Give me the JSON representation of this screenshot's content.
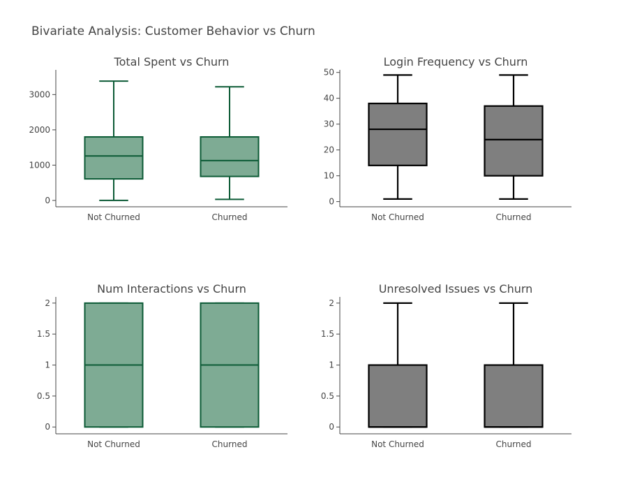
{
  "figure": {
    "title": "Bivariate Analysis: Customer Behavior vs Churn"
  },
  "colors": {
    "green_fill": "#7eab94",
    "green_line": "#0b5a35",
    "gray_fill": "#7f7f7f",
    "gray_line": "#000000"
  },
  "chart_data": [
    {
      "type": "box",
      "title": "Total Spent vs Churn",
      "xlabel": "",
      "ylabel": "",
      "categories": [
        "Not Churned",
        "Churned"
      ],
      "ylim": [
        -180,
        3700
      ],
      "yticks": [
        0,
        1000,
        2000,
        3000
      ],
      "ytick_labels": [
        "0",
        "1000",
        "2000",
        "3000"
      ],
      "fill_color": "#7eab94",
      "line_color": "#0b5a35",
      "boxes": [
        {
          "category": "Not Churned",
          "min": 0,
          "q1": 610,
          "median": 1260,
          "q3": 1800,
          "max": 3380
        },
        {
          "category": "Churned",
          "min": 30,
          "q1": 680,
          "median": 1130,
          "q3": 1800,
          "max": 3220
        }
      ]
    },
    {
      "type": "box",
      "title": "Login Frequency vs Churn",
      "xlabel": "",
      "ylabel": "",
      "categories": [
        "Not Churned",
        "Churned"
      ],
      "ylim": [
        -2,
        51
      ],
      "yticks": [
        0,
        10,
        20,
        30,
        40,
        50
      ],
      "ytick_labels": [
        "0",
        "10",
        "20",
        "30",
        "40",
        "50"
      ],
      "fill_color": "#7f7f7f",
      "line_color": "#000000",
      "boxes": [
        {
          "category": "Not Churned",
          "min": 1,
          "q1": 14,
          "median": 28,
          "q3": 38,
          "max": 49
        },
        {
          "category": "Churned",
          "min": 1,
          "q1": 10,
          "median": 24,
          "q3": 37,
          "max": 49
        }
      ]
    },
    {
      "type": "box",
      "title": "Num Interactions vs Churn",
      "xlabel": "",
      "ylabel": "",
      "categories": [
        "Not Churned",
        "Churned"
      ],
      "ylim": [
        -0.11,
        2.1
      ],
      "yticks": [
        0,
        0.5,
        1,
        1.5,
        2
      ],
      "ytick_labels": [
        "0",
        "0.5",
        "1",
        "1.5",
        "2"
      ],
      "fill_color": "#7eab94",
      "line_color": "#0b5a35",
      "boxes": [
        {
          "category": "Not Churned",
          "min": 0,
          "q1": 0,
          "median": 1,
          "q3": 2,
          "max": 2
        },
        {
          "category": "Churned",
          "min": 0,
          "q1": 0,
          "median": 1,
          "q3": 2,
          "max": 2
        }
      ]
    },
    {
      "type": "box",
      "title": "Unresolved Issues vs Churn",
      "xlabel": "",
      "ylabel": "",
      "categories": [
        "Not Churned",
        "Churned"
      ],
      "ylim": [
        -0.11,
        2.1
      ],
      "yticks": [
        0,
        0.5,
        1,
        1.5,
        2
      ],
      "ytick_labels": [
        "0",
        "0.5",
        "1",
        "1.5",
        "2"
      ],
      "fill_color": "#7f7f7f",
      "line_color": "#000000",
      "boxes": [
        {
          "category": "Not Churned",
          "min": 0,
          "q1": 0,
          "median": 0,
          "q3": 1,
          "max": 2
        },
        {
          "category": "Churned",
          "min": 0,
          "q1": 0,
          "median": 0,
          "q3": 1,
          "max": 2
        }
      ]
    }
  ]
}
